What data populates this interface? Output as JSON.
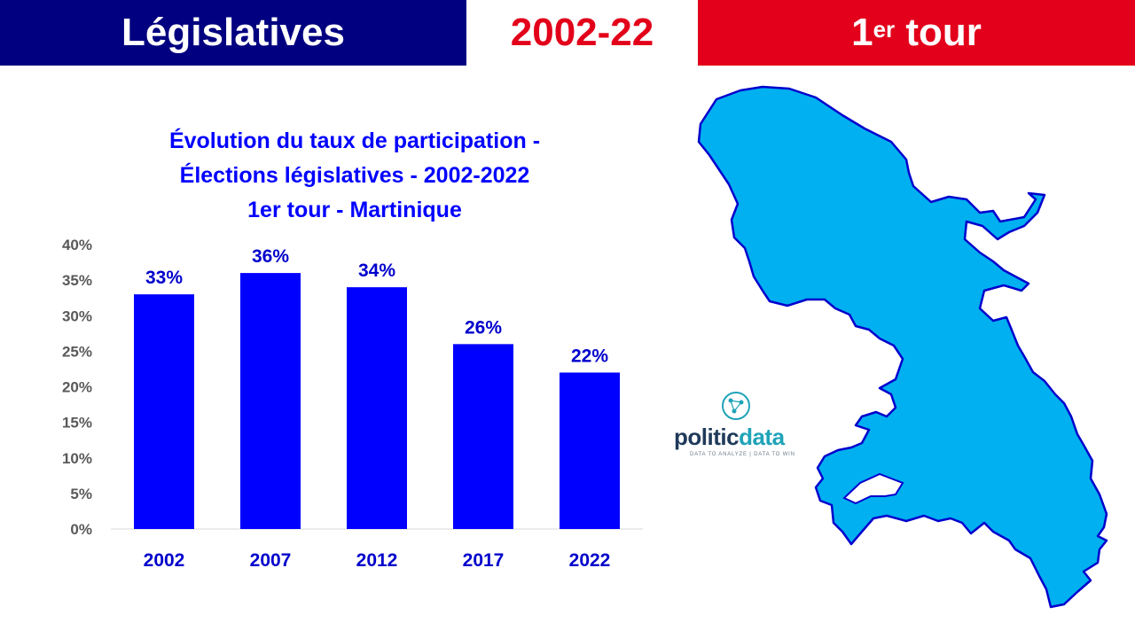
{
  "header": {
    "left": "Législatives",
    "middle": "2002-22",
    "right_main": "1",
    "right_sup": "er",
    "right_tail": " tour"
  },
  "colors": {
    "navy": "#000080",
    "red": "#e2001a",
    "bar": "#0000ff",
    "map_fill": "#00b0f0",
    "map_stroke": "#0000cc"
  },
  "logo": {
    "word_a": "politic",
    "word_b": "data",
    "tagline": "DATA TO ANALYZE | DATA TO WIN",
    "icon": "network-globe-icon"
  },
  "chart_data": {
    "type": "bar",
    "title_lines": [
      "Évolution du taux de participation -",
      "Élections législatives - 2002-2022",
      "1er tour - Martinique"
    ],
    "categories": [
      "2002",
      "2007",
      "2012",
      "2017",
      "2022"
    ],
    "values": [
      33,
      36,
      34,
      26,
      22
    ],
    "value_labels": [
      "33%",
      "36%",
      "34%",
      "26%",
      "22%"
    ],
    "ylim": [
      0,
      40
    ],
    "y_ticks": [
      "0%",
      "5%",
      "10%",
      "15%",
      "20%",
      "25%",
      "30%",
      "35%",
      "40%"
    ],
    "grid": false,
    "legend": "none"
  }
}
